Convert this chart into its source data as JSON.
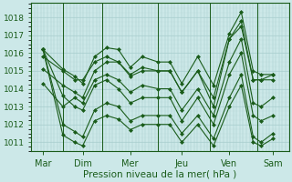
{
  "xlabel": "Pression niveau de la mer( hPa )",
  "background_color": "#cce8e8",
  "plot_bg_color": "#cce8e8",
  "grid_major_color": "#a0c8c8",
  "grid_minor_color": "#b8d8d8",
  "line_color": "#1a5c1a",
  "xlim": [
    0,
    6.5
  ],
  "ylim": [
    1010.5,
    1018.8
  ],
  "yticks": [
    1011,
    1012,
    1013,
    1014,
    1015,
    1016,
    1017,
    1018
  ],
  "xtick_labels": [
    "Mar",
    "Dim",
    "Mer",
    "Jeu",
    "Ven",
    "Sam"
  ],
  "xtick_pos": [
    0.3,
    1.3,
    2.5,
    3.8,
    5.0,
    6.1
  ],
  "day_boundaries": [
    0.8,
    1.8,
    3.2,
    4.5,
    5.7
  ],
  "xlabel_fontsize": 7.5,
  "ytick_fontsize": 6.5,
  "xtick_fontsize": 7,
  "lines": [
    [
      0.3,
      1016.2,
      0.8,
      1015.1,
      1.1,
      1014.7,
      1.3,
      1014.3,
      1.6,
      1015.8,
      1.9,
      1016.3,
      2.2,
      1016.2,
      2.5,
      1015.2,
      2.8,
      1015.8,
      3.2,
      1015.5,
      3.5,
      1015.5,
      3.8,
      1014.3,
      4.2,
      1015.8,
      4.6,
      1014.2,
      5.0,
      1017.1,
      5.3,
      1018.3,
      5.6,
      1015.0,
      5.8,
      1014.8,
      6.1,
      1014.8
    ],
    [
      0.3,
      1015.1,
      0.8,
      1014.2,
      1.1,
      1013.8,
      1.3,
      1013.5,
      1.6,
      1015.0,
      1.9,
      1015.5,
      2.2,
      1015.5,
      2.5,
      1014.7,
      2.8,
      1015.0,
      3.2,
      1015.0,
      3.5,
      1015.0,
      3.8,
      1013.8,
      4.2,
      1015.0,
      4.6,
      1013.0,
      5.0,
      1016.8,
      5.3,
      1017.8,
      5.6,
      1014.5,
      5.8,
      1014.5,
      6.1,
      1014.5
    ],
    [
      0.3,
      1014.3,
      0.8,
      1013.0,
      1.1,
      1013.5,
      1.3,
      1013.2,
      1.6,
      1014.5,
      1.9,
      1014.8,
      2.2,
      1014.5,
      2.5,
      1013.8,
      2.8,
      1014.2,
      3.2,
      1014.0,
      3.5,
      1014.0,
      3.8,
      1012.8,
      4.2,
      1014.0,
      4.6,
      1012.5,
      5.0,
      1015.5,
      5.3,
      1016.8,
      5.6,
      1013.2,
      5.8,
      1013.0,
      6.1,
      1013.5
    ],
    [
      0.3,
      1016.2,
      0.8,
      1013.6,
      1.1,
      1013.0,
      1.3,
      1012.8,
      1.6,
      1014.2,
      1.9,
      1014.5,
      2.2,
      1014.0,
      2.5,
      1013.2,
      2.8,
      1013.5,
      3.2,
      1013.5,
      3.5,
      1013.5,
      3.8,
      1012.2,
      4.2,
      1013.5,
      4.6,
      1012.0,
      5.0,
      1014.8,
      5.3,
      1016.0,
      5.6,
      1012.5,
      5.8,
      1012.2,
      6.1,
      1012.5
    ],
    [
      0.3,
      1016.2,
      0.8,
      1012.0,
      1.1,
      1011.6,
      1.3,
      1011.3,
      1.6,
      1012.8,
      1.9,
      1013.2,
      2.2,
      1013.0,
      2.5,
      1012.2,
      2.8,
      1012.5,
      3.2,
      1012.5,
      3.5,
      1012.5,
      3.8,
      1011.5,
      4.2,
      1012.5,
      4.6,
      1011.2,
      5.0,
      1013.5,
      5.3,
      1014.8,
      5.6,
      1011.3,
      5.8,
      1011.0,
      6.1,
      1011.5
    ],
    [
      0.3,
      1016.2,
      0.8,
      1011.4,
      1.1,
      1011.0,
      1.3,
      1010.8,
      1.6,
      1012.2,
      1.9,
      1012.5,
      2.2,
      1012.3,
      2.5,
      1011.7,
      2.8,
      1012.0,
      3.2,
      1012.0,
      3.5,
      1012.0,
      3.8,
      1011.0,
      4.2,
      1012.0,
      4.6,
      1010.8,
      5.0,
      1013.0,
      5.3,
      1014.2,
      5.6,
      1011.0,
      5.8,
      1010.8,
      6.1,
      1011.2
    ],
    [
      0.3,
      1015.8,
      0.8,
      1015.0,
      1.1,
      1014.5,
      1.3,
      1014.5,
      1.6,
      1015.5,
      1.9,
      1015.8,
      2.2,
      1015.5,
      2.5,
      1014.8,
      2.8,
      1015.2,
      3.2,
      1015.0,
      3.5,
      1015.0,
      3.8,
      1013.8,
      4.2,
      1015.0,
      4.6,
      1013.5,
      5.0,
      1016.8,
      5.3,
      1017.5,
      5.6,
      1014.5,
      5.8,
      1014.5,
      6.1,
      1014.8
    ]
  ]
}
